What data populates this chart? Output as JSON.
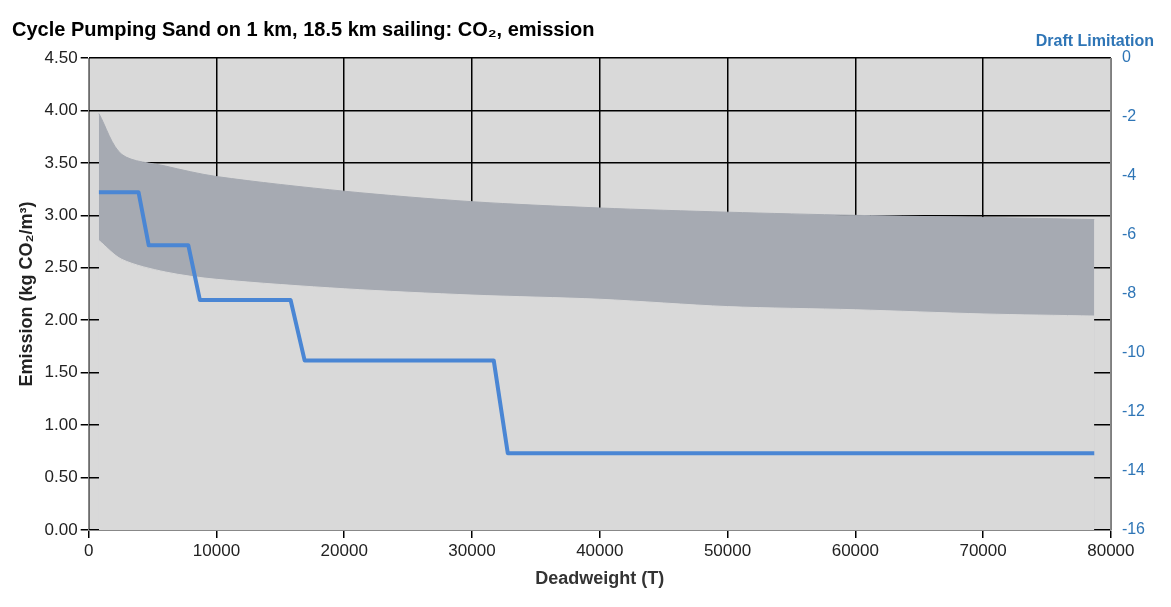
{
  "chart_data": {
    "type": "line",
    "title": "Cycle Pumping Sand on 1 km, 18.5 km sailing: CO₂, emission",
    "xlabel": "Deadweight (T)",
    "ylabel": "Emission (kg CO₂/m³)",
    "y2label": "Draft Limitation",
    "series": [
      {
        "type": "area",
        "color": "#a6aab2",
        "x": [
          800,
          2600,
          6000,
          10000,
          20000,
          30000,
          40000,
          50000,
          60000,
          70000,
          78700
        ],
        "values": [
          3.97,
          3.58,
          3.47,
          3.37,
          3.23,
          3.13,
          3.07,
          3.03,
          3.0,
          2.98,
          2.96
        ]
      },
      {
        "type": "area",
        "color": "#d9d9d9",
        "x": [
          800,
          2600,
          6000,
          10000,
          20000,
          30000,
          40000,
          50000,
          60000,
          70000,
          78700
        ],
        "values": [
          2.76,
          2.58,
          2.46,
          2.39,
          2.3,
          2.24,
          2.2,
          2.13,
          2.1,
          2.06,
          2.04
        ]
      },
      {
        "type": "line",
        "axis": "y2",
        "color": "#4a86d4",
        "x": [
          800,
          3900,
          4700,
          7800,
          8700,
          15800,
          16900,
          31700,
          32800,
          78700
        ],
        "values": [
          -4.55,
          -4.55,
          -6.35,
          -6.35,
          -8.2,
          -8.2,
          -10.25,
          -10.25,
          -13.4,
          -13.4
        ]
      }
    ],
    "xlim": [
      0,
      80000
    ],
    "xticks": [
      0,
      10000,
      20000,
      30000,
      40000,
      50000,
      60000,
      70000,
      80000
    ],
    "ylim": [
      0,
      4.5
    ],
    "yticks": [
      {
        "value": 0,
        "label": "0.00"
      },
      {
        "value": 0.5,
        "label": "0.50"
      },
      {
        "value": 1,
        "label": "1.00"
      },
      {
        "value": 1.5,
        "label": "1.50"
      },
      {
        "value": 2,
        "label": "2.00"
      },
      {
        "value": 2.5,
        "label": "2.50"
      },
      {
        "value": 3,
        "label": "3.00"
      },
      {
        "value": 3.5,
        "label": "3.50"
      },
      {
        "value": 4,
        "label": "4.00"
      },
      {
        "value": 4.5,
        "label": "4.50"
      }
    ],
    "y2lim": [
      -16,
      0
    ],
    "y2ticks": [
      -16,
      -14,
      -12,
      -10,
      -8,
      -6,
      -4,
      -2,
      0
    ],
    "grid": true,
    "legend": false,
    "marker": "none",
    "line_style": "solid"
  }
}
